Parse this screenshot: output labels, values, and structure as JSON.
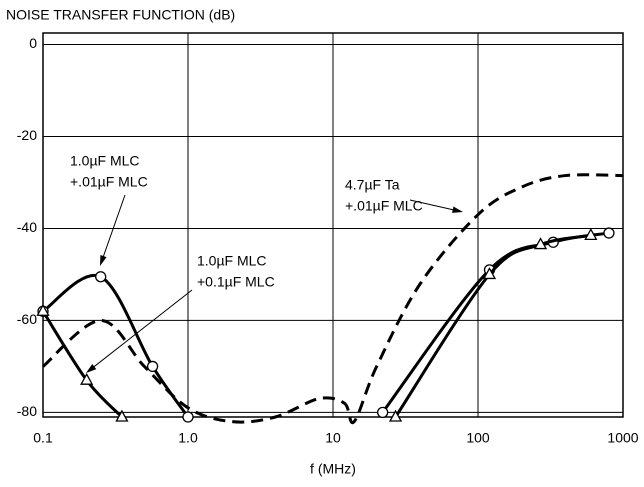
{
  "chart_data": {
    "type": "line",
    "title": "NOISE TRANSFER FUNCTION (dB)",
    "x_label": "f (MHz)",
    "xscale": "log",
    "xlim": [
      0.1,
      1000
    ],
    "xticks": [
      0.1,
      {
        "value": 1,
        "label": "1.0"
      },
      10,
      100,
      1000
    ],
    "ylim": [
      -81,
      2.5
    ],
    "yticks": [
      0,
      -20,
      -40,
      -60,
      -80
    ],
    "grid": true,
    "series": [
      {
        "label": [
          "1.0µF MLC",
          "+.01µF MLC"
        ],
        "color": "#000000",
        "dash": false,
        "marker": "circle",
        "x": [
          0.1,
          0.25,
          0.57,
          1.0,
          null,
          22,
          120,
          330,
          800
        ],
        "values": [
          -58,
          -50.5,
          -70,
          -81,
          null,
          -80,
          -49,
          -43,
          -41
        ]
      },
      {
        "label": [
          "1.0µF MLC",
          "+0.1µF MLC"
        ],
        "color": "#000000",
        "dash": false,
        "marker": "triangle",
        "x": [
          0.1,
          0.2,
          0.35,
          null,
          27,
          120,
          270,
          600
        ],
        "values": [
          -58,
          -73,
          -81,
          null,
          -81,
          -50,
          -43.5,
          -41.5
        ]
      },
      {
        "label": [
          "4.7µF Ta",
          "+.01µF MLC"
        ],
        "color": "#000000",
        "dash": true,
        "marker": "none",
        "x": [
          0.1,
          0.25,
          0.5,
          1,
          2,
          4,
          8,
          12,
          14,
          20,
          40,
          100,
          200,
          400,
          1000
        ],
        "values": [
          -70,
          -60,
          -70,
          -79,
          -82,
          -81,
          -77,
          -78,
          -82,
          -70,
          -52,
          -37,
          -31,
          -28.5,
          -28.5
        ]
      }
    ]
  }
}
